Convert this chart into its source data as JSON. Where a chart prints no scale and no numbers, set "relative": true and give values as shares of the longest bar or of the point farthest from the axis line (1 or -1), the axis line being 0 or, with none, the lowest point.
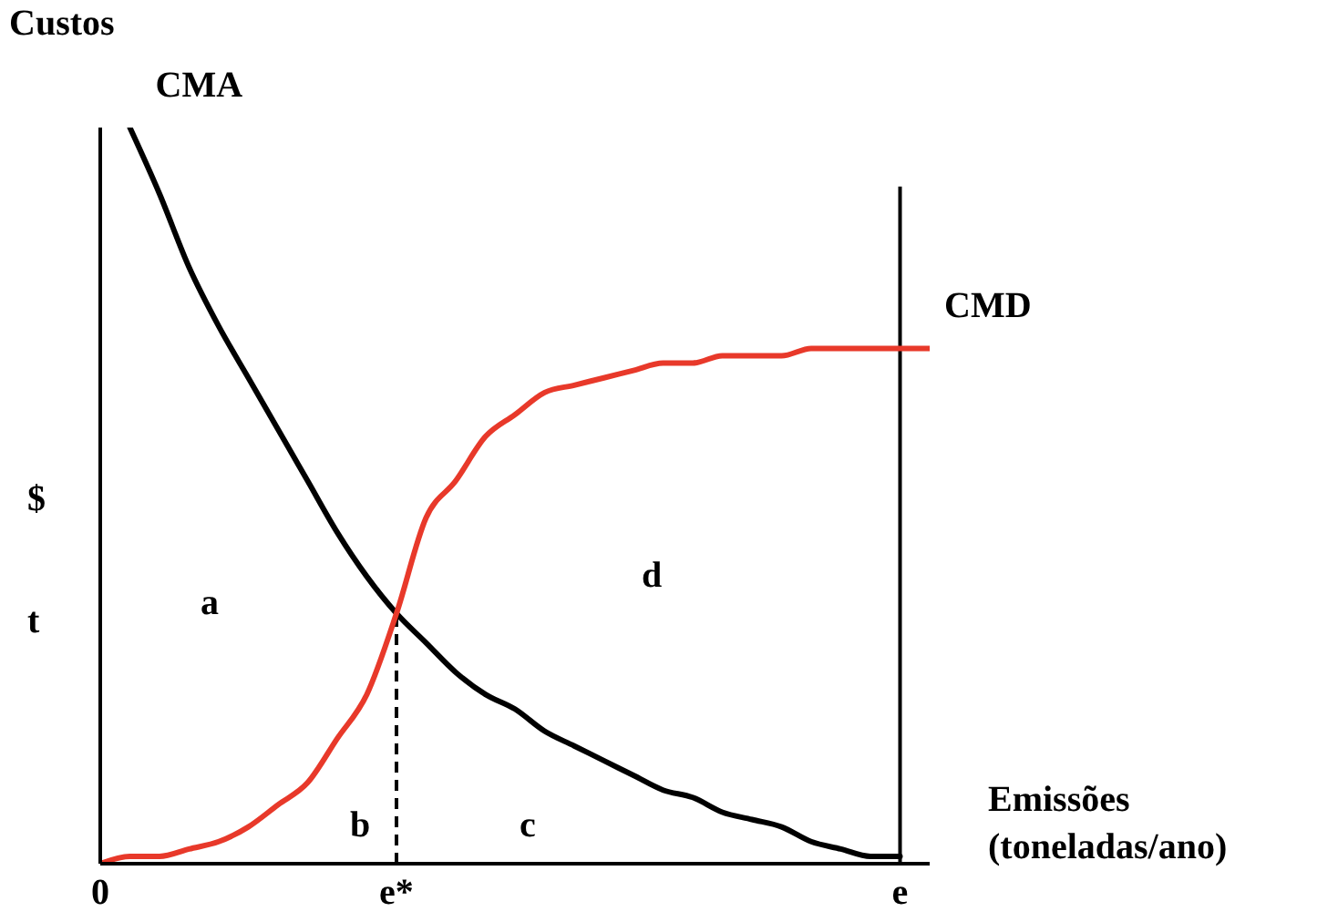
{
  "chart_data": {
    "type": "line",
    "relative": true,
    "ylabel": "Custos",
    "xlabel": "Emissões (toneladas/ano)",
    "categories": [
      "0",
      null,
      null,
      null,
      null,
      null,
      null,
      null,
      null,
      null,
      "e*",
      null,
      null,
      null,
      null,
      null,
      null,
      null,
      null,
      null,
      null,
      null,
      null,
      null,
      null,
      null,
      null,
      "e",
      null
    ],
    "marker": "none",
    "line_style": "solid",
    "grid": false,
    "legend": false,
    "series": [
      {
        "name": "CMA",
        "color": "#000000",
        "values": [
          null,
          1.0,
          0.91,
          0.81,
          0.73,
          0.66,
          0.59,
          0.52,
          0.45,
          0.39,
          0.34,
          0.3,
          0.26,
          0.23,
          0.21,
          0.18,
          0.16,
          0.14,
          0.12,
          0.1,
          0.09,
          0.07,
          0.06,
          0.05,
          0.03,
          0.02,
          0.01,
          0.01,
          null
        ]
      },
      {
        "name": "CMD",
        "color": "#e8392a",
        "values": [
          0,
          0.01,
          0.01,
          0.02,
          0.03,
          0.05,
          0.08,
          0.11,
          0.17,
          0.23,
          0.34,
          0.47,
          0.52,
          0.58,
          0.61,
          0.64,
          0.65,
          0.66,
          0.67,
          0.68,
          0.68,
          0.69,
          0.69,
          0.69,
          0.7,
          0.7,
          0.7,
          0.7,
          0.7
        ]
      }
    ],
    "ref_lines": [
      {
        "axis": "x",
        "value": "e*",
        "label": null,
        "color": "#000000",
        "line_style": "dashed"
      },
      {
        "axis": "x",
        "value": "e",
        "label": null,
        "color": "#000000"
      }
    ],
    "annotations": [
      "$",
      "t",
      "a",
      "b",
      "c",
      "d"
    ]
  }
}
